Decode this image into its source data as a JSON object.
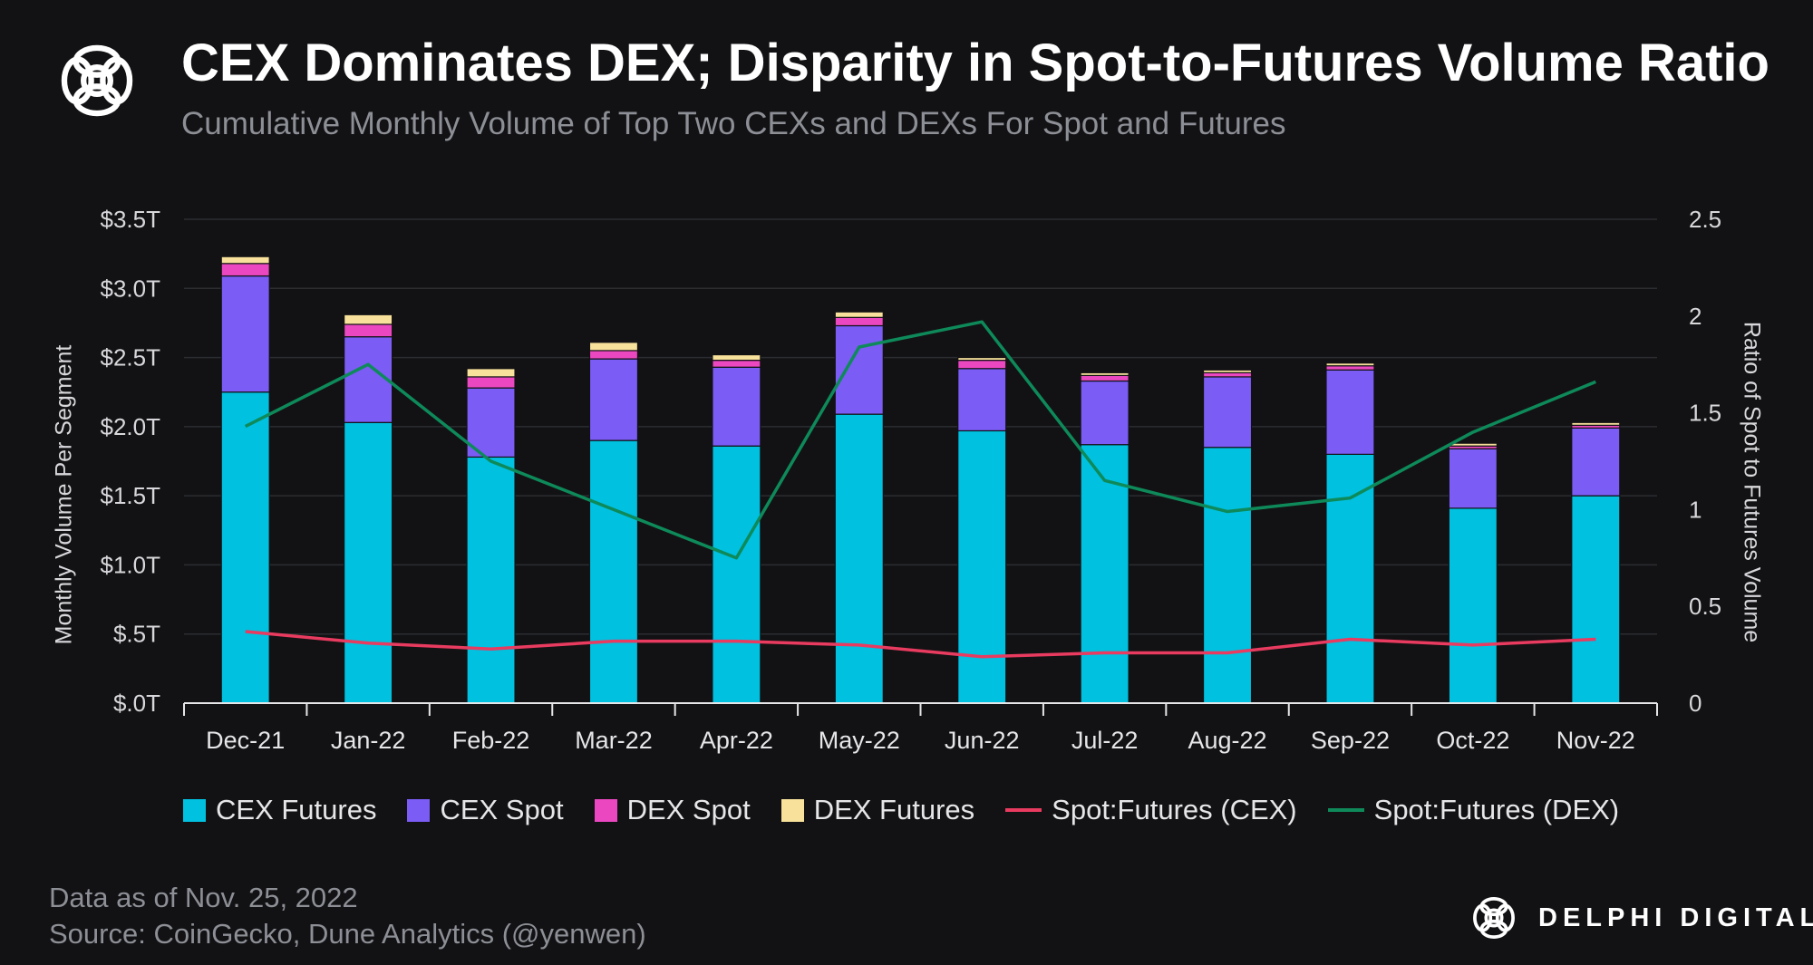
{
  "header": {
    "title": "CEX Dominates DEX; Disparity in Spot-to-Futures Volume Ratio",
    "subtitle": "Cumulative Monthly Volume of Top Two CEXs and DEXs For Spot and Futures",
    "logo_icon": "knot-logo-icon"
  },
  "chart_data": {
    "type": "bar",
    "stacked": true,
    "categories": [
      "Dec-21",
      "Jan-22",
      "Feb-22",
      "Mar-22",
      "Apr-22",
      "May-22",
      "Jun-22",
      "Jul-22",
      "Aug-22",
      "Sep-22",
      "Oct-22",
      "Nov-22"
    ],
    "series": [
      {
        "name": "CEX Futures",
        "kind": "bar",
        "axis": "left",
        "color": "#00c1e0",
        "values": [
          2.25,
          2.03,
          1.78,
          1.9,
          1.86,
          2.09,
          1.97,
          1.87,
          1.85,
          1.8,
          1.41,
          1.5
        ]
      },
      {
        "name": "CEX Spot",
        "kind": "bar",
        "axis": "left",
        "color": "#7b5cf5",
        "values": [
          0.84,
          0.62,
          0.5,
          0.59,
          0.57,
          0.64,
          0.45,
          0.46,
          0.51,
          0.61,
          0.43,
          0.49
        ]
      },
      {
        "name": "DEX Spot",
        "kind": "bar",
        "axis": "left",
        "color": "#ea47c0",
        "values": [
          0.09,
          0.09,
          0.08,
          0.06,
          0.05,
          0.06,
          0.06,
          0.04,
          0.03,
          0.03,
          0.02,
          0.02
        ]
      },
      {
        "name": "DEX Futures",
        "kind": "bar",
        "axis": "left",
        "color": "#f8e19a",
        "values": [
          0.05,
          0.07,
          0.06,
          0.06,
          0.04,
          0.04,
          0.02,
          0.02,
          0.02,
          0.02,
          0.02,
          0.02
        ]
      },
      {
        "name": "Spot:Futures (CEX)",
        "kind": "line",
        "axis": "right",
        "color": "#e83b5f",
        "values": [
          0.37,
          0.31,
          0.28,
          0.32,
          0.32,
          0.3,
          0.24,
          0.26,
          0.26,
          0.33,
          0.3,
          0.33
        ]
      },
      {
        "name": "Spot:Futures (DEX)",
        "kind": "line",
        "axis": "right",
        "color": "#0e8a5a",
        "values": [
          1.43,
          1.75,
          1.25,
          1.0,
          0.75,
          1.84,
          1.97,
          1.15,
          0.99,
          1.06,
          1.4,
          1.66
        ]
      }
    ],
    "ylabel": "Monthly Volume Per Segment",
    "ylabel_right": "Ratio of Spot to Futures Volume",
    "ylim": [
      0,
      3.5
    ],
    "ylim_right": [
      0,
      2.5
    ],
    "yticks": [
      "$.0T",
      "$.5T",
      "$1.0T",
      "$1.5T",
      "$2.0T",
      "$2.5T",
      "$3.0T",
      "$3.5T"
    ],
    "ytick_values": [
      0,
      0.5,
      1.0,
      1.5,
      2.0,
      2.5,
      3.0,
      3.5
    ],
    "yticks_right": [
      "0",
      "0.5",
      "1",
      "1.5",
      "2",
      "2.5"
    ],
    "ytick_values_right": [
      0,
      0.5,
      1,
      1.5,
      2,
      2.5
    ],
    "grid": true,
    "legend_position": "bottom"
  },
  "legend": [
    {
      "label": "CEX Futures",
      "kind": "bar",
      "color": "#00c1e0"
    },
    {
      "label": "CEX Spot",
      "kind": "bar",
      "color": "#7b5cf5"
    },
    {
      "label": "DEX Spot",
      "kind": "bar",
      "color": "#ea47c0"
    },
    {
      "label": "DEX Futures",
      "kind": "bar",
      "color": "#f8e19a"
    },
    {
      "label": "Spot:Futures (CEX)",
      "kind": "line",
      "color": "#e83b5f"
    },
    {
      "label": "Spot:Futures (DEX)",
      "kind": "line",
      "color": "#0e8a5a"
    }
  ],
  "footer": {
    "date_note": "Data as of Nov. 25, 2022",
    "source": "Source: CoinGecko, Dune Analytics (@yenwen)",
    "brand": "DELPHI DIGITAL",
    "brand_icon": "knot-logo-icon"
  }
}
